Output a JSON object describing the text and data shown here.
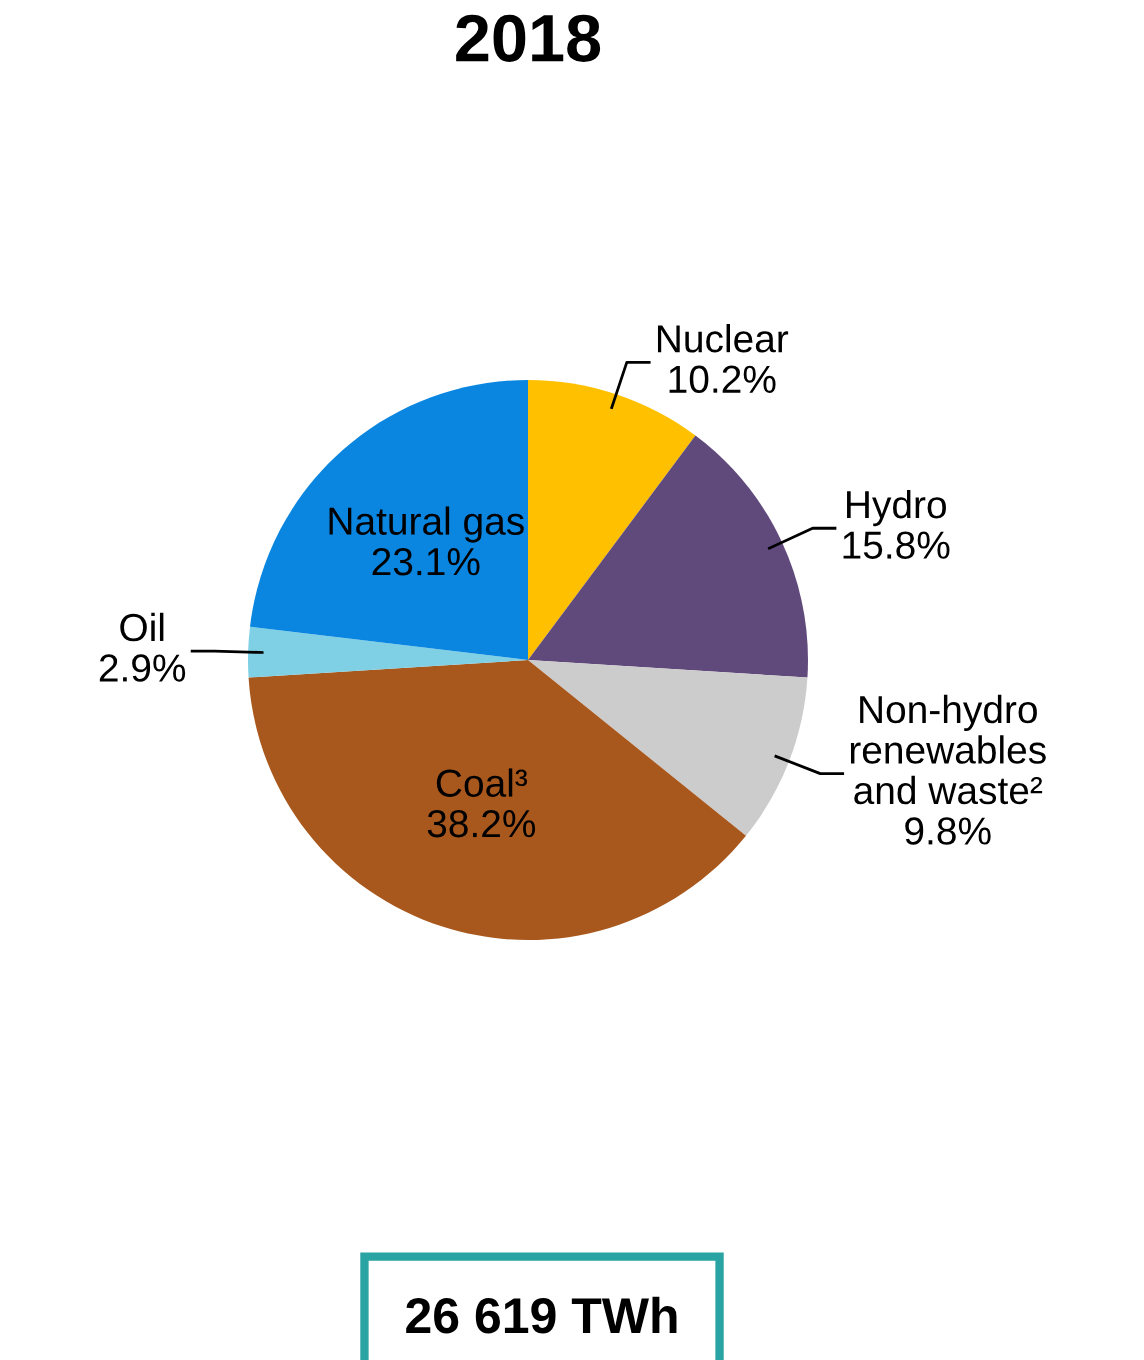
{
  "chart_data": {
    "type": "pie",
    "title": "2018",
    "categories": [
      "Nuclear",
      "Hydro",
      "Non-hydro\nrenewables\nand waste²",
      "Coal³",
      "Oil",
      "Natural gas"
    ],
    "values": [
      10.2,
      15.8,
      9.8,
      38.2,
      2.9,
      23.1
    ],
    "colors": [
      "#ffc000",
      "#604a7b",
      "#cccccc",
      "#a9581d",
      "#7fd0e4",
      "#0a86e0"
    ],
    "value_labels": [
      "10.2%",
      "15.8%",
      "9.8%",
      "38.2%",
      "2.9%",
      "23.1%"
    ],
    "annotations": [
      "26 619 TWh"
    ]
  }
}
